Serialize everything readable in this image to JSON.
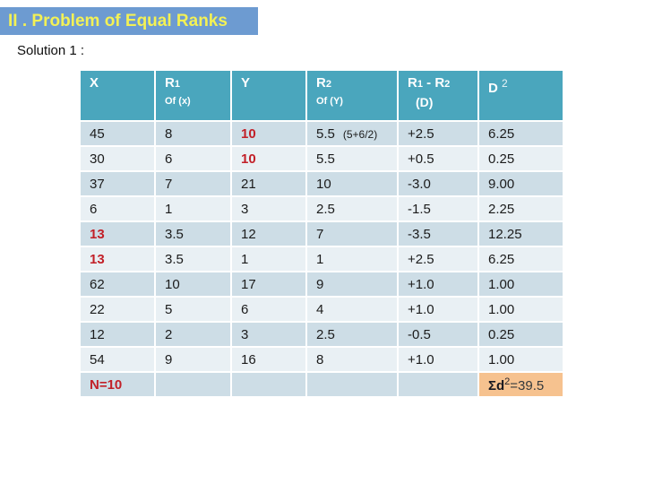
{
  "title": "II . Problem of Equal Ranks",
  "subtitle": "Solution 1 :",
  "colors": {
    "title_bar_blue": "#6d9bd1",
    "title_text_yellow": "#f3f155",
    "header_teal": "#4aa6bd",
    "band_dark": "#cddde6",
    "band_light": "#e9f0f4",
    "sum_cell_orange": "#f6c28f",
    "accent_red": "#c22028"
  },
  "table": {
    "headers": {
      "x": "X",
      "r1": {
        "main": "R",
        "idx": "1",
        "sub": "Of (x)"
      },
      "y": "Y",
      "r2": {
        "main": "R",
        "idx": "2",
        "sub": "Of (Y)"
      },
      "diff": {
        "a": "R",
        "ai": "1",
        "sep": " - ",
        "b": "R",
        "bi": "2",
        "sub": "(D)"
      },
      "dsq": {
        "main": "D",
        "sup": "2"
      }
    },
    "rows": [
      {
        "x": "45",
        "r1": "8",
        "y": "10",
        "r2": "5.5",
        "note": "(5+6/2)",
        "d": "+2.5",
        "d2": "6.25"
      },
      {
        "x": "30",
        "r1": "6",
        "y": "10",
        "r2": "5.5",
        "d": "+0.5",
        "d2": "0.25"
      },
      {
        "x": "37",
        "r1": "7",
        "y": "21",
        "r2": "10",
        "d": "-3.0",
        "d2": "9.00"
      },
      {
        "x": "6",
        "r1": "1",
        "y": "3",
        "r2": "2.5",
        "d": "-1.5",
        "d2": "2.25"
      },
      {
        "x": "13",
        "r1": "3.5",
        "y": "12",
        "r2": "7",
        "d": "-3.5",
        "d2": "12.25"
      },
      {
        "x": "13",
        "r1": "3.5",
        "y": "1",
        "r2": "1",
        "d": "+2.5",
        "d2": "6.25"
      },
      {
        "x": "62",
        "r1": "10",
        "y": "17",
        "r2": "9",
        "d": "+1.0",
        "d2": "1.00"
      },
      {
        "x": "22",
        "r1": "5",
        "y": "6",
        "r2": "4",
        "d": "+1.0",
        "d2": "1.00"
      },
      {
        "x": "12",
        "r1": "2",
        "y": "3",
        "r2": "2.5",
        "d": "-0.5",
        "d2": "0.25"
      },
      {
        "x": "54",
        "r1": "9",
        "y": "16",
        "r2": "8",
        "d": "+1.0",
        "d2": "1.00"
      }
    ],
    "footer": {
      "n": "N=10",
      "sum_label": "Σd",
      "sum_sup": "2",
      "sum_value": "=39.5"
    }
  }
}
